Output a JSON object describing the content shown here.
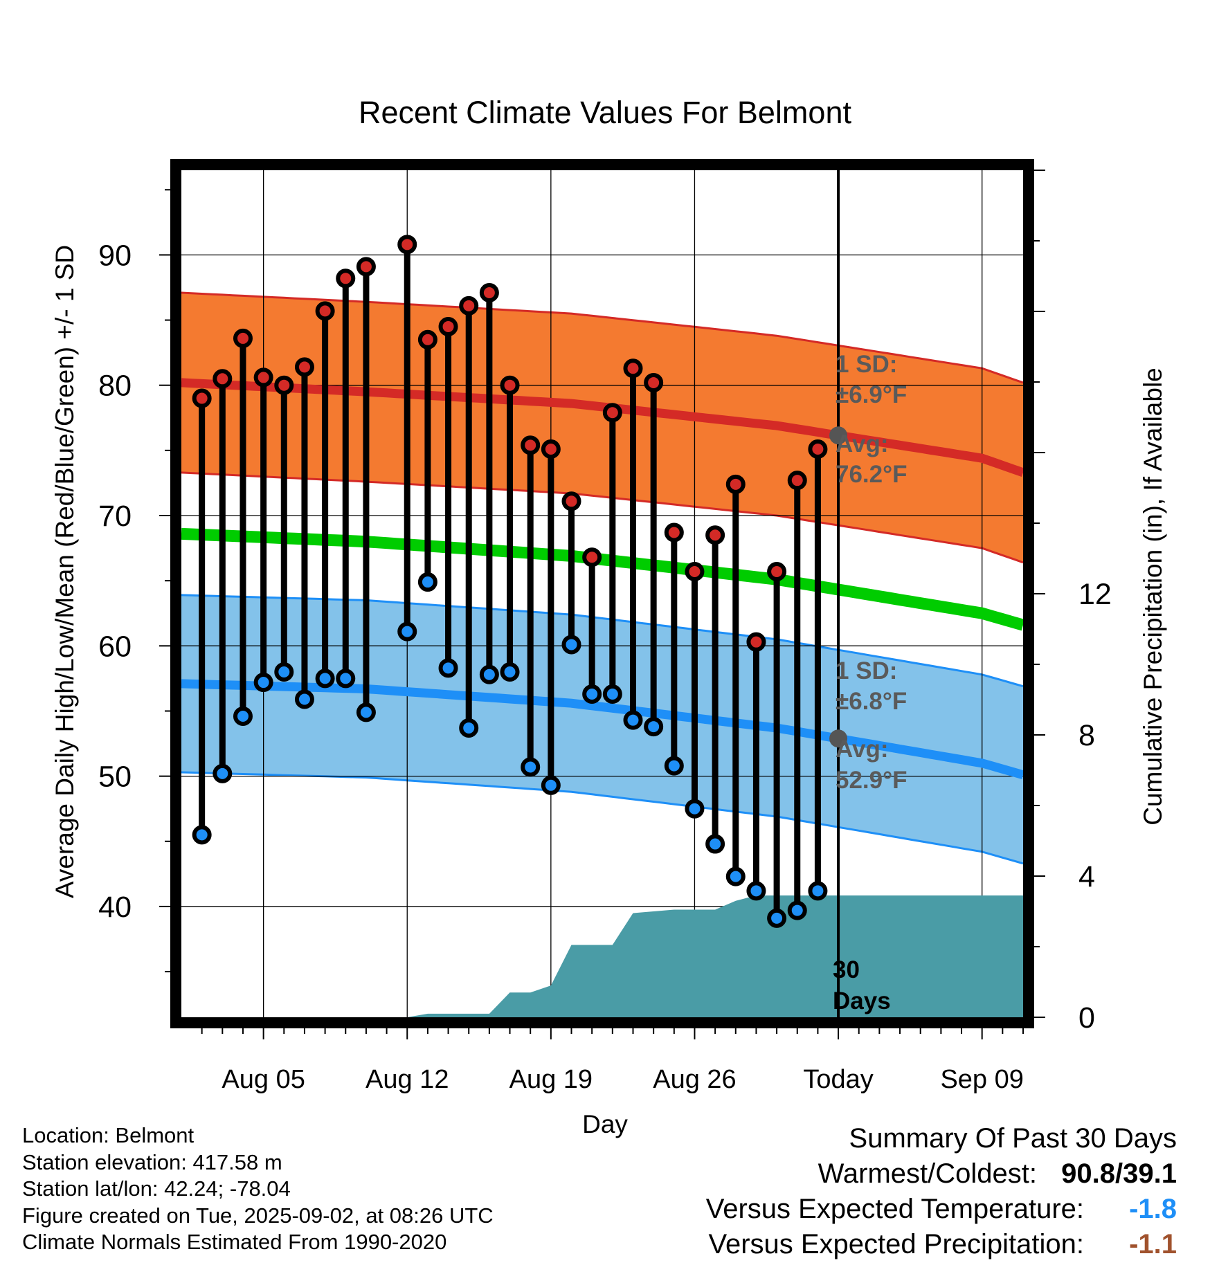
{
  "chart_data": {
    "type": "line",
    "title": "Recent Climate Values For Belmont",
    "xlabel": "Day",
    "ylabel": "Average Daily High/Low/Mean (Red/Blue/Green) +/- 1 SD",
    "y2label": "Cumulative Precipitation (in), If Available",
    "x_tick_labels": [
      "Aug 05",
      "Aug 12",
      "Aug 19",
      "Aug 26",
      "Today",
      "Sep 09"
    ],
    "y_ticks": [
      "40",
      "50",
      "60",
      "70",
      "80",
      "90"
    ],
    "y2_ticks": [
      "0",
      "4",
      "8",
      "12"
    ],
    "ylim": [
      31.5,
      96.5
    ],
    "y2lim": [
      0,
      24
    ],
    "x_day_range": [
      1,
      42
    ],
    "today_day": 33,
    "days": [
      2,
      3,
      4,
      5,
      6,
      7,
      8,
      9,
      10,
      11,
      12,
      13,
      14,
      15,
      16,
      17,
      18,
      19,
      20,
      21,
      22,
      23,
      24,
      25,
      26,
      27,
      28,
      29,
      30,
      31,
      32
    ],
    "daily_high": [
      79.0,
      80.5,
      83.6,
      80.6,
      80.0,
      81.4,
      85.7,
      88.2,
      89.1,
      null,
      90.8,
      83.5,
      84.5,
      86.1,
      87.1,
      80.0,
      75.4,
      75.1,
      71.1,
      66.8,
      77.9,
      81.3,
      80.2,
      68.7,
      65.7,
      68.5,
      72.4,
      60.3,
      65.7,
      72.7,
      75.1
    ],
    "daily_low": [
      45.5,
      50.2,
      54.6,
      57.2,
      58.0,
      55.9,
      57.5,
      57.5,
      54.9,
      null,
      61.1,
      64.9,
      58.3,
      53.7,
      57.8,
      58.0,
      50.7,
      49.3,
      60.1,
      56.3,
      56.3,
      54.3,
      53.8,
      50.8,
      47.5,
      44.8,
      42.3,
      41.2,
      39.1,
      39.7,
      41.2
    ],
    "normal_high": {
      "days": [
        1,
        10,
        20,
        30,
        40,
        42
      ],
      "avg": [
        80.2,
        79.5,
        78.6,
        76.9,
        74.4,
        73.3
      ],
      "sd": 6.9
    },
    "normal_low": {
      "days": [
        1,
        10,
        20,
        30,
        40,
        42
      ],
      "avg": [
        57.1,
        56.7,
        55.6,
        53.7,
        51.0,
        50.1
      ],
      "sd": 6.8
    },
    "normal_mean": {
      "days": [
        1,
        10,
        20,
        30,
        40,
        42
      ],
      "values": [
        68.6,
        68.0,
        66.9,
        65.1,
        62.5,
        61.6
      ]
    },
    "precip_cumulative": {
      "days": [
        1,
        11,
        12,
        13,
        14,
        15,
        16,
        17,
        18,
        19,
        20,
        21,
        22,
        23,
        24,
        25,
        26,
        27,
        28,
        29,
        30,
        31,
        42
      ],
      "values": [
        0,
        0,
        0,
        0.1,
        0.1,
        0.1,
        0.1,
        0.7,
        0.7,
        0.9,
        2.05,
        2.05,
        2.05,
        2.95,
        3.0,
        3.05,
        3.05,
        3.05,
        3.3,
        3.45,
        3.45,
        3.45,
        3.45
      ]
    },
    "annotations": {
      "high_sd_label": "1 SD:",
      "high_sd_value": "±6.9°F",
      "high_avg_label": "Avg:",
      "high_avg_value": "76.2°F",
      "low_sd_label": "1 SD:",
      "low_sd_value": "±6.8°F",
      "low_avg_label": "Avg:",
      "low_avg_value": "52.9°F",
      "days_number": "30",
      "days_word": "Days"
    },
    "colors": {
      "high_band": "#f47a30",
      "high_line": "#d42a26",
      "high_marker": "#d42a26",
      "mean_line": "#00cc00",
      "low_band": "#83c2ea",
      "low_line": "#1e8ff7",
      "low_marker": "#1e8ff7",
      "precip": "#4a9ca6",
      "annotation_text": "#5a5a5a"
    }
  },
  "footer": {
    "location": "Location: Belmont",
    "elevation": "Station elevation: 417.58 m",
    "latlon": "Station lat/lon: 42.24; -78.04",
    "created": "Figure created on Tue, 2025-09-02, at 08:26 UTC",
    "normals": "Climate Normals Estimated From 1990-2020"
  },
  "summary": {
    "title": "Summary Of Past 30 Days",
    "warmest_label": "Warmest/Coldest:",
    "warmest_value": "90.8/39.1",
    "temp_label": "Versus Expected Temperature:",
    "temp_value": "-1.8",
    "temp_color": "#1e8ff7",
    "precip_label": "Versus Expected Precipitation:",
    "precip_value": "-1.1",
    "precip_color": "#a0522d"
  }
}
